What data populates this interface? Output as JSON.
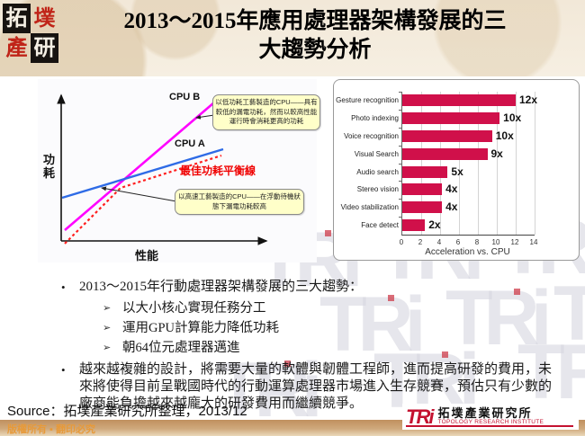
{
  "header": {
    "logo_chars": [
      "拓",
      "墣",
      "產",
      "研"
    ],
    "title_line1": "2013～2015年應用處理器架構發展的三",
    "title_line2": "大趨勢分析"
  },
  "watermark": {
    "text": "TRi"
  },
  "diagram": {
    "y_axis_label": "功耗",
    "x_axis_label": "性能",
    "cpu_a_label": "CPU A",
    "cpu_b_label": "CPU B",
    "balance_line_label": "最佳功耗平衡線",
    "callout_low_power": "以低功耗工藝製造的CPU——具有較低的漏電功耗，然而以較高性能運行時會消耗更高的功耗",
    "callout_high_speed": "以高速工藝製造的CPU——在浮動待機狀態下漏電功耗較高",
    "line_colors": {
      "cpu_a": "#2e6be6",
      "cpu_b": "#ff00ff",
      "balance": "#ff2020"
    }
  },
  "chart_data": {
    "type": "bar",
    "orientation": "horizontal",
    "categories": [
      "Gesture recognition",
      "Photo indexing",
      "Voice recognition",
      "Visual Search",
      "Audio search",
      "Stereo vision",
      "Video stabilization",
      "Face detect"
    ],
    "values": [
      12,
      10.3,
      9.5,
      9,
      4.8,
      4.2,
      4.2,
      2.4
    ],
    "value_labels": [
      "12x",
      "10x",
      "10x",
      "9x",
      "5x",
      "4x",
      "4x",
      "2x"
    ],
    "xlabel": "Acceleration vs. CPU",
    "xlim": [
      0,
      14
    ],
    "xticks": [
      0,
      2,
      4,
      6,
      8,
      10,
      12,
      14
    ],
    "grid": true,
    "bar_color": "#d0104a"
  },
  "bullets": {
    "marker": "•",
    "sub_marker": "➢",
    "item1": "2013～2015年行動處理器架構發展的三大趨勢：",
    "sub_items": [
      "以大小核心實現任務分工",
      "運用GPU計算能力降低功耗",
      "朝64位元處理器邁進"
    ],
    "item2": "越來越複雜的設計，將需要大量的軟體與韌體工程師，進而提高研發的費用，未來將使得目前呈戰國時代的行動運算處理器市場進入生存競賽，預估只有少數的廠商能負擔越來越龐大的研發費用而繼續競爭。"
  },
  "source_line": "Source：拓墣產業研究所整理，2013/12",
  "footer": {
    "copyright": "版權所有 ▪ 翻印必究",
    "logo_text": "TRi",
    "institute_zh": "拓墣產業研究所",
    "institute_en": "TOPOLOGY RESEARCH INSTITUTE"
  }
}
